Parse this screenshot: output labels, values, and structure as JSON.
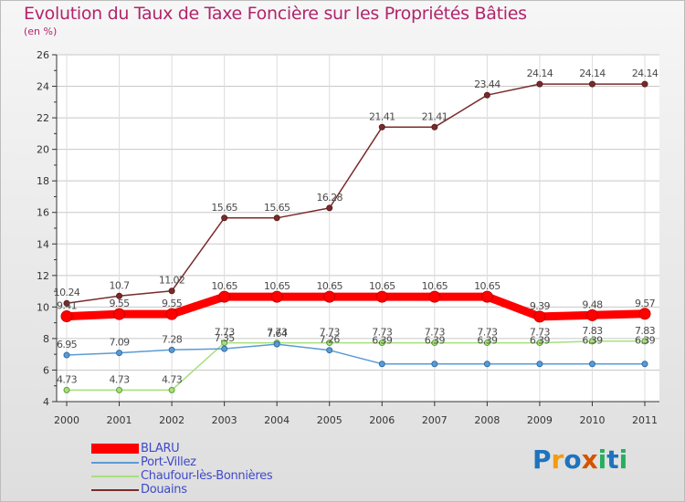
{
  "chart_data": {
    "type": "line",
    "title": "Evolution du Taux de Taxe Foncière sur les Propriétés Bâties",
    "subtitle": "(en %)",
    "categories": [
      "2000",
      "2001",
      "2002",
      "2003",
      "2004",
      "2005",
      "2006",
      "2007",
      "2008",
      "2009",
      "2010",
      "2011"
    ],
    "ylim": [
      4,
      26
    ],
    "yticks": [
      4,
      6,
      8,
      10,
      12,
      14,
      16,
      18,
      20,
      22,
      24,
      26
    ],
    "grid": true,
    "series": [
      {
        "name": "BLARU",
        "color": "#ff0000",
        "values": [
          9.41,
          9.55,
          9.55,
          10.65,
          10.65,
          10.65,
          10.65,
          10.65,
          10.65,
          9.39,
          9.48,
          9.57
        ],
        "labels": [
          "9.41",
          "9.55",
          "9.55",
          "10.65",
          "10.65",
          "10.65",
          "10.65",
          "10.65",
          "10.65",
          "9.39",
          "9.48",
          "9.57"
        ]
      },
      {
        "name": "Port-Villez",
        "color": "#5b9bd5",
        "values": [
          6.95,
          7.09,
          7.28,
          7.35,
          7.64,
          7.26,
          6.39,
          6.39,
          6.39,
          6.39,
          6.39,
          6.39
        ],
        "labels": [
          "6.95",
          "7.09",
          "7.28",
          "7.35",
          "7.64",
          "7.26",
          "6.39",
          "6.39",
          "6.39",
          "6.39",
          "6.39",
          "6.39"
        ]
      },
      {
        "name": "Chaufour-lès-Bonnières",
        "color": "#a6e07a",
        "values": [
          4.73,
          4.73,
          4.73,
          7.73,
          7.73,
          7.73,
          7.73,
          7.73,
          7.73,
          7.73,
          7.83,
          7.83
        ],
        "labels": [
          "4.73",
          "4.73",
          "4.73",
          "7.73",
          "7.73",
          "7.73",
          "7.73",
          "7.73",
          "7.73",
          "7.73",
          "7.83",
          "7.83"
        ]
      },
      {
        "name": "Douains",
        "color": "#7a2b2b",
        "values": [
          10.24,
          10.7,
          11.02,
          15.65,
          15.65,
          16.28,
          21.41,
          21.41,
          23.44,
          24.14,
          24.14,
          24.14
        ],
        "labels": [
          "10.24",
          "10.7",
          "11.02",
          "15.65",
          "15.65",
          "16.28",
          "21.41",
          "21.41",
          "23.44",
          "24.14",
          "24.14",
          "24.14"
        ]
      }
    ]
  },
  "logo": {
    "letters": [
      "P",
      "r",
      "o",
      "x",
      "i",
      "t",
      "i"
    ],
    "colors": [
      "#1e73be",
      "#f39c12",
      "#1e73be",
      "#d35400",
      "#27ae60",
      "#1e73be",
      "#27ae60"
    ]
  }
}
